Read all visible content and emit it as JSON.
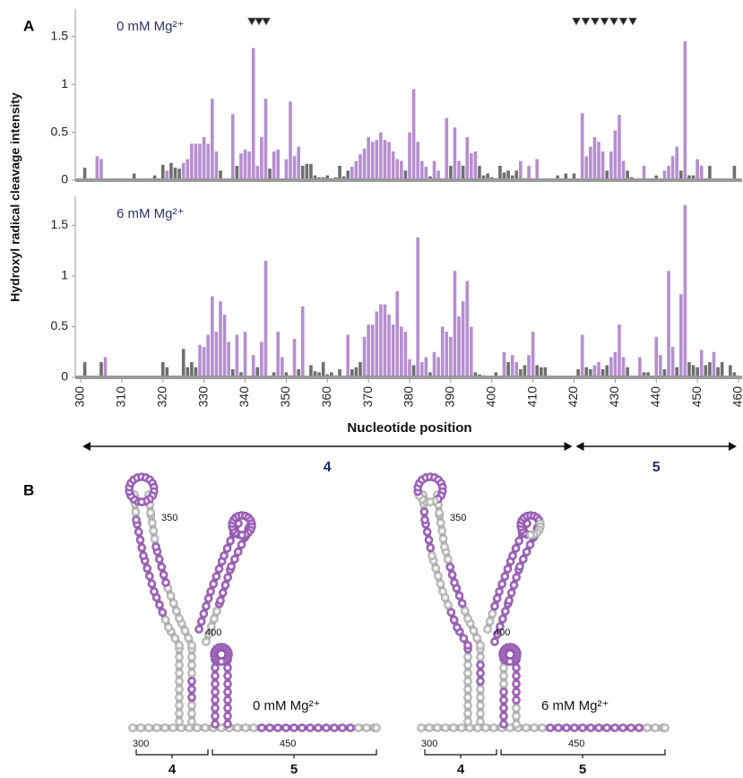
{
  "panels": [
    "A",
    "B"
  ],
  "chart_data": [
    {
      "type": "bar",
      "label": "0 mM Mg²⁺",
      "ylabel": "Hydroxyl radical cleavage intensity",
      "xlim": [
        300,
        460
      ],
      "ylim": [
        0,
        1.75
      ],
      "yticks": [
        0,
        0.5,
        1,
        1.5
      ],
      "series": [
        {
          "color": "#b58ed0",
          "x": [
            304,
            305,
            321,
            325,
            326,
            327,
            328,
            329,
            330,
            331,
            332,
            333,
            337,
            339,
            340,
            341,
            342,
            343,
            344,
            345,
            347,
            348,
            350,
            351,
            352,
            353,
            366,
            367,
            368,
            369,
            370,
            371,
            372,
            373,
            374,
            375,
            376,
            377,
            378,
            380,
            381,
            382,
            383,
            384,
            386,
            387,
            389,
            391,
            392,
            394,
            395,
            396,
            407,
            409,
            411,
            422,
            423,
            424,
            425,
            426,
            427,
            429,
            430,
            431,
            432,
            437,
            442,
            443,
            444,
            445,
            447,
            450,
            451
          ],
          "values": [
            0.25,
            0.22,
            0.1,
            0.18,
            0.22,
            0.38,
            0.38,
            0.38,
            0.45,
            0.38,
            0.85,
            0.3,
            0.69,
            0.28,
            0.32,
            0.3,
            1.38,
            0.15,
            0.45,
            0.85,
            0.3,
            0.32,
            0.22,
            0.82,
            0.25,
            0.35,
            0.14,
            0.2,
            0.27,
            0.33,
            0.45,
            0.4,
            0.42,
            0.5,
            0.42,
            0.4,
            0.3,
            0.22,
            0.2,
            0.5,
            0.95,
            0.4,
            0.2,
            0.14,
            0.2,
            0.1,
            0.65,
            0.55,
            0.2,
            0.45,
            0.28,
            0.3,
            0.2,
            0.15,
            0.22,
            0.7,
            0.25,
            0.35,
            0.45,
            0.4,
            0.3,
            0.3,
            0.52,
            0.68,
            0.2,
            0.15,
            0.1,
            0.15,
            0.25,
            0.35,
            1.45,
            0.22,
            0.15
          ]
        },
        {
          "color": "#6e6e6e",
          "x": [
            301,
            313,
            318,
            320,
            322,
            323,
            324,
            334,
            338,
            346,
            354,
            355,
            356,
            357,
            358,
            359,
            360,
            361,
            362,
            363,
            364,
            365,
            379,
            385,
            390,
            393,
            397,
            398,
            399,
            400,
            401,
            402,
            403,
            404,
            405,
            406,
            413,
            416,
            417,
            418,
            420,
            428,
            433,
            434,
            440,
            446,
            448,
            449,
            452,
            453,
            459
          ],
          "values": [
            0.13,
            0.07,
            0.05,
            0.16,
            0.18,
            0.13,
            0.12,
            0.1,
            0.15,
            0.12,
            0.15,
            0.17,
            0.17,
            0.05,
            0.03,
            0.03,
            0.05,
            0.02,
            0.03,
            0.15,
            0.04,
            0.1,
            0.1,
            0.04,
            0.15,
            0.15,
            0.15,
            0.05,
            0.07,
            0.03,
            0.02,
            0.15,
            0.08,
            0.1,
            0.05,
            0.1,
            0.02,
            0.05,
            0.02,
            0.07,
            0.07,
            0.1,
            0.1,
            0.03,
            0.05,
            0.1,
            0.05,
            0.05,
            0.02,
            0.15,
            0.15
          ]
        }
      ]
    },
    {
      "type": "bar",
      "label": "6 mM Mg²⁺",
      "xlabel": "Nucleotide position",
      "xlim": [
        300,
        460
      ],
      "ylim": [
        0,
        1.75
      ],
      "yticks": [
        0,
        0.5,
        1,
        1.5
      ],
      "xticks": [
        300,
        310,
        320,
        330,
        340,
        350,
        360,
        370,
        380,
        390,
        400,
        410,
        420,
        430,
        440,
        450,
        460
      ],
      "series": [
        {
          "color": "#b58ed0",
          "x": [
            306,
            329,
            330,
            331,
            332,
            333,
            334,
            335,
            336,
            338,
            340,
            342,
            344,
            345,
            348,
            349,
            352,
            354,
            365,
            369,
            370,
            371,
            372,
            373,
            374,
            375,
            376,
            377,
            378,
            379,
            380,
            382,
            383,
            384,
            386,
            387,
            388,
            389,
            390,
            391,
            392,
            393,
            394,
            395,
            403,
            405,
            406,
            409,
            410,
            422,
            425,
            426,
            429,
            430,
            431,
            432,
            436,
            440,
            441,
            443,
            444,
            446,
            447,
            451,
            454
          ],
          "values": [
            0.2,
            0.32,
            0.3,
            0.42,
            0.8,
            0.45,
            0.75,
            0.62,
            0.35,
            0.42,
            0.45,
            0.22,
            0.35,
            1.15,
            0.45,
            0.2,
            0.38,
            0.7,
            0.42,
            0.4,
            0.52,
            0.52,
            0.65,
            0.72,
            0.72,
            0.62,
            0.52,
            0.85,
            0.5,
            0.45,
            0.18,
            1.38,
            0.15,
            0.2,
            0.25,
            0.2,
            0.5,
            0.45,
            0.4,
            1.05,
            0.6,
            0.75,
            0.95,
            0.5,
            0.25,
            0.22,
            0.15,
            0.22,
            0.45,
            0.42,
            0.12,
            0.15,
            0.2,
            0.25,
            0.52,
            0.2,
            0.2,
            0.4,
            0.22,
            1.05,
            0.3,
            0.82,
            1.7,
            0.27,
            0.25
          ]
        },
        {
          "color": "#6e6e6e",
          "x": [
            301,
            305,
            320,
            321,
            325,
            326,
            327,
            328,
            337,
            339,
            343,
            347,
            350,
            351,
            353,
            356,
            357,
            358,
            359,
            360,
            361,
            362,
            363,
            366,
            367,
            368,
            381,
            385,
            396,
            397,
            398,
            401,
            404,
            407,
            408,
            411,
            412,
            413,
            421,
            423,
            424,
            427,
            428,
            433,
            437,
            438,
            442,
            445,
            448,
            449,
            450,
            452,
            453,
            455,
            456,
            458,
            459
          ],
          "values": [
            0.15,
            0.15,
            0.15,
            0.1,
            0.28,
            0.1,
            0.15,
            0.1,
            0.08,
            0.05,
            0.1,
            0.05,
            0.05,
            0.02,
            0.08,
            0.12,
            0.06,
            0.05,
            0.15,
            0.03,
            0.05,
            0.02,
            0.08,
            0.08,
            0.1,
            0.15,
            0.12,
            0.05,
            0.05,
            0.03,
            0.02,
            0.05,
            0.15,
            0.08,
            0.12,
            0.12,
            0.1,
            0.1,
            0.08,
            0.1,
            0.08,
            0.08,
            0.12,
            0.1,
            0.05,
            0.05,
            0.08,
            0.1,
            0.15,
            0.12,
            0.1,
            0.12,
            0.15,
            0.1,
            0.15,
            0.12,
            0.05
          ]
        }
      ],
      "domains": [
        {
          "label": "4",
          "start": 300,
          "end": 420
        },
        {
          "label": "5",
          "start": 420,
          "end": 460
        }
      ]
    }
  ],
  "structures": [
    {
      "label": "0 mM Mg²⁺",
      "residues": [
        "350",
        "400",
        "300",
        "450"
      ],
      "domains": [
        "4",
        "5"
      ]
    },
    {
      "label": "6 mM Mg²⁺",
      "residues": [
        "350",
        "400",
        "300",
        "450"
      ],
      "domains": [
        "4",
        "5"
      ]
    }
  ]
}
